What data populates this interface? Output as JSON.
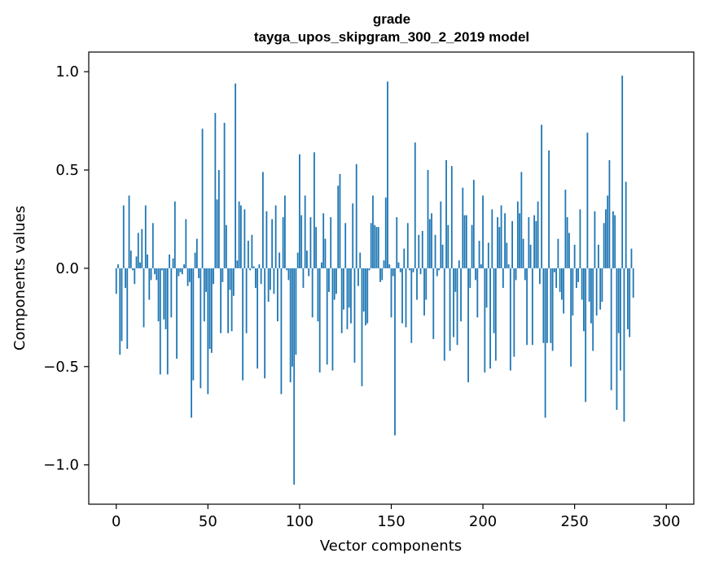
{
  "chart_data": {
    "type": "bar",
    "title": "grade",
    "subtitle": "tayga_upos_skipgram_300_2_2019 model",
    "xlabel": "Vector components",
    "ylabel": "Components values",
    "xlim": [
      -15,
      315
    ],
    "ylim": [
      -1.2,
      1.1
    ],
    "xticks": [
      0,
      50,
      100,
      150,
      200,
      250,
      300
    ],
    "xtick_labels": [
      "0",
      "50",
      "100",
      "150",
      "200",
      "250",
      "300"
    ],
    "yticks": [
      -1.0,
      -0.5,
      0.0,
      0.5,
      1.0
    ],
    "ytick_labels": [
      "−1.0",
      "−0.5",
      "0.0",
      "0.5",
      "1.0"
    ],
    "bar_color": "#1f77b4",
    "grid": false,
    "values": [
      -0.13,
      0.02,
      -0.44,
      -0.37,
      0.32,
      -0.1,
      -0.41,
      0.37,
      0.09,
      -0.01,
      -0.08,
      0.06,
      0.18,
      0.03,
      0.2,
      -0.3,
      0.32,
      0.07,
      -0.16,
      -0.06,
      0.23,
      -0.03,
      -0.06,
      -0.27,
      -0.54,
      -0.01,
      -0.26,
      -0.31,
      -0.54,
      0.07,
      -0.25,
      0.05,
      0.34,
      -0.46,
      -0.04,
      -0.02,
      -0.03,
      0.02,
      0.25,
      -0.09,
      -0.07,
      -0.76,
      -0.57,
      0.08,
      0.15,
      -0.05,
      -0.61,
      0.71,
      -0.27,
      -0.12,
      -0.64,
      -0.41,
      -0.43,
      -0.08,
      0.79,
      0.35,
      0.5,
      -0.33,
      -0.07,
      0.74,
      0.22,
      -0.33,
      -0.11,
      -0.32,
      -0.14,
      0.94,
      0.04,
      0.34,
      0.32,
      -0.57,
      0.3,
      -0.33,
      0.14,
      -0.01,
      0.17,
      0.01,
      -0.1,
      -0.51,
      0.02,
      -0.08,
      0.49,
      -0.56,
      0.29,
      -0.17,
      -0.11,
      0.25,
      -0.13,
      0.32,
      -0.27,
      0.08,
      -0.64,
      0.26,
      0.37,
      -0.01,
      -0.06,
      -0.58,
      -0.5,
      -1.1,
      -0.44,
      0.08,
      0.58,
      0.27,
      -0.1,
      0.37,
      0.09,
      -0.04,
      0.26,
      -0.25,
      0.59,
      0.21,
      -0.27,
      -0.53,
      0.03,
      0.28,
      0.15,
      -0.49,
      -0.12,
      0.26,
      -0.52,
      -0.16,
      -0.13,
      0.42,
      0.48,
      -0.33,
      -0.21,
      0.23,
      -0.31,
      -0.2,
      -0.28,
      0.33,
      -0.48,
      0.53,
      -0.09,
      0.08,
      -0.6,
      -0.22,
      -0.29,
      -0.28,
      -0.01,
      0.23,
      0.37,
      0.22,
      0.21,
      0.21,
      -0.07,
      -0.06,
      0.04,
      0.36,
      0.95,
      0.02,
      -0.25,
      -0.04,
      -0.85,
      0.26,
      0.03,
      -0.02,
      -0.28,
      0.1,
      -0.3,
      0.23,
      -0.01,
      -0.38,
      -0.02,
      0.64,
      -0.16,
      0.17,
      -0.03,
      0.19,
      -0.24,
      -0.16,
      0.5,
      0.25,
      0.28,
      -0.36,
      0.17,
      -0.04,
      -0.01,
      0.34,
      0.12,
      -0.47,
      0.55,
      0.22,
      -0.42,
      0.52,
      -0.35,
      -0.12,
      -0.39,
      0.04,
      -0.27,
      0.41,
      0.27,
      0.27,
      -0.58,
      -0.1,
      0.22,
      0.45,
      -0.06,
      -0.25,
      0.14,
      0.02,
      0.37,
      -0.53,
      -0.2,
      0.13,
      -0.51,
      0.3,
      -0.33,
      -0.47,
      0.26,
      0.21,
      0.32,
      -0.1,
      0.28,
      0.13,
      0.02,
      -0.52,
      0.24,
      -0.45,
      -0.06,
      0.34,
      0.28,
      0.49,
      0.15,
      -0.06,
      -0.39,
      0.26,
      0.12,
      -0.39,
      0.27,
      0.24,
      0.34,
      -0.08,
      0.73,
      -0.38,
      -0.76,
      -0.38,
      0.6,
      -0.38,
      -0.42,
      -0.02,
      -0.1,
      0.15,
      -0.12,
      -0.16,
      -0.23,
      0.4,
      0.26,
      0.18,
      -0.5,
      -0.24,
      0.12,
      -0.1,
      -0.07,
      0.3,
      -0.16,
      -0.32,
      -0.68,
      0.69,
      -0.17,
      -0.28,
      -0.42,
      0.29,
      -0.24,
      0.12,
      -0.21,
      -0.17,
      0.23,
      0.3,
      0.37,
      0.55,
      -0.62,
      0.29,
      0.27,
      -0.72,
      -0.33,
      -0.52,
      0.98,
      -0.78,
      0.44,
      -0.31,
      -0.35,
      0.1,
      -0.15
    ]
  }
}
